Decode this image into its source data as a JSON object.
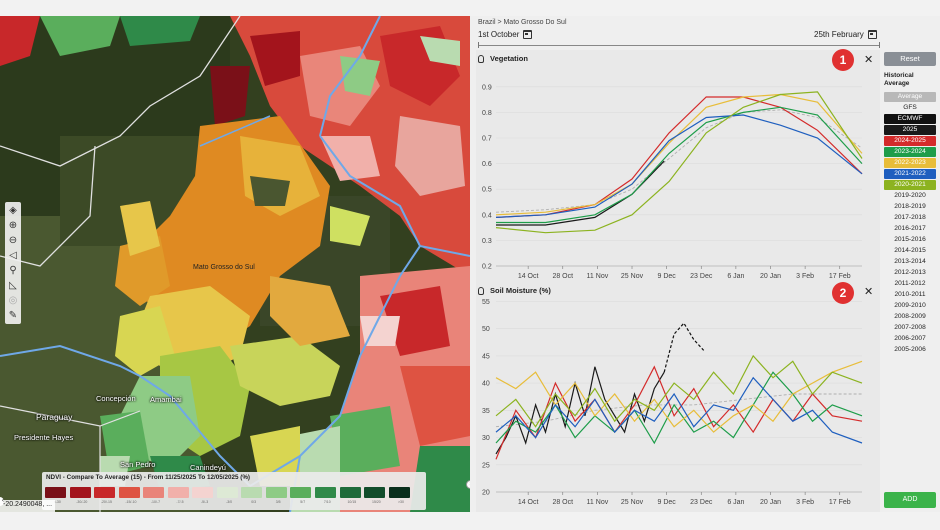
{
  "map": {
    "labels": {
      "state": "Mato Grosso do Sul",
      "concepcion": "Concepción",
      "amambai": "Amambai",
      "paraguay": "Paraguay",
      "presidente_hayes": "Presidente Hayes",
      "san_pedro": "San Pedro",
      "canindeyu": "Canindeyú"
    },
    "toolbar": [
      {
        "name": "layers-icon",
        "glyph": "◈"
      },
      {
        "name": "zoom-in-icon",
        "glyph": "⊕"
      },
      {
        "name": "zoom-out-icon",
        "glyph": "⊖"
      },
      {
        "name": "navigate-icon",
        "glyph": "◁"
      },
      {
        "name": "search-icon",
        "glyph": "⚲"
      },
      {
        "name": "measure-icon",
        "glyph": "◺"
      },
      {
        "name": "target-icon",
        "glyph": "◎"
      },
      {
        "name": "draw-icon",
        "glyph": "✎"
      }
    ],
    "legend": {
      "title": "NDVI - Compare To Average (15) - From 11/25/2025 To 12/05/2025 (%)",
      "colors": [
        "#7a1018",
        "#a3141c",
        "#c8282a",
        "#de5342",
        "#e98479",
        "#f1b0aa",
        "#f4d3d0",
        "#dde9d5",
        "#b9dbb0",
        "#8ecb85",
        "#5aae5c",
        "#2f8a49",
        "#1f6b3a",
        "#124d2b",
        "#0a2e1c"
      ],
      "ranges": [
        "<-30",
        "-30/-20",
        "-20/-15",
        "-15/-10",
        "-10/-7",
        "-7/-5",
        "-5/-3",
        "-3/0",
        "0/3",
        "3/5",
        "5/7",
        "7/10",
        "10/15",
        "15/20",
        ">30"
      ]
    },
    "coords": "-20.2490048, ..."
  },
  "panel": {
    "breadcrumb": "Brazil > Mato Grosso Do Sul",
    "date_start": "1st October",
    "date_end": "25th February",
    "reset_label": "Reset",
    "historical_label": "Historical Average",
    "add_label": "ADD",
    "years": [
      {
        "label": "Average",
        "bg": "#b8b8b8",
        "fg": "#ffffff"
      },
      {
        "label": "GFS",
        "bg": "",
        "fg": "#222222"
      },
      {
        "label": "ECMWF",
        "bg": "#111111",
        "fg": "#ffffff"
      },
      {
        "label": "2025",
        "bg": "#1a1a1a",
        "fg": "#ffffff"
      },
      {
        "label": "2024-2025",
        "bg": "#d42b2b",
        "fg": "#ffffff"
      },
      {
        "label": "2023-2024",
        "bg": "#1e9d4a",
        "fg": "#ffffff"
      },
      {
        "label": "2022-2023",
        "bg": "#e8bd3a",
        "fg": "#ffffff"
      },
      {
        "label": "2021-2022",
        "bg": "#1f5fbf",
        "fg": "#ffffff"
      },
      {
        "label": "2020-2021",
        "bg": "#8cb320",
        "fg": "#ffffff"
      },
      {
        "label": "2019-2020",
        "bg": "",
        "fg": "#222222"
      },
      {
        "label": "2018-2019",
        "bg": "",
        "fg": "#222222"
      },
      {
        "label": "2017-2018",
        "bg": "",
        "fg": "#222222"
      },
      {
        "label": "2016-2017",
        "bg": "",
        "fg": "#222222"
      },
      {
        "label": "2015-2016",
        "bg": "",
        "fg": "#222222"
      },
      {
        "label": "2014-2015",
        "bg": "",
        "fg": "#222222"
      },
      {
        "label": "2013-2014",
        "bg": "",
        "fg": "#222222"
      },
      {
        "label": "2012-2013",
        "bg": "",
        "fg": "#222222"
      },
      {
        "label": "2011-2012",
        "bg": "",
        "fg": "#222222"
      },
      {
        "label": "2010-2011",
        "bg": "",
        "fg": "#222222"
      },
      {
        "label": "2009-2010",
        "bg": "",
        "fg": "#222222"
      },
      {
        "label": "2008-2009",
        "bg": "",
        "fg": "#222222"
      },
      {
        "label": "2007-2008",
        "bg": "",
        "fg": "#222222"
      },
      {
        "label": "2006-2007",
        "bg": "",
        "fg": "#222222"
      },
      {
        "label": "2005-2006",
        "bg": "",
        "fg": "#222222"
      }
    ]
  },
  "chart_data": [
    {
      "type": "line",
      "title": "Vegetation",
      "badge": "1",
      "x_ticks": [
        "14 Oct",
        "28 Oct",
        "11 Nov",
        "25 Nov",
        "9 Dec",
        "23 Dec",
        "6 Jan",
        "20 Jan",
        "3 Feb",
        "17 Feb"
      ],
      "x_tick_days": [
        13,
        27,
        41,
        55,
        69,
        83,
        97,
        111,
        125,
        139
      ],
      "xlim": [
        0,
        148
      ],
      "ylim": [
        0.2,
        0.95
      ],
      "y_ticks": [
        0.2,
        0.3,
        0.4,
        0.5,
        0.6,
        0.7,
        0.8,
        0.9
      ],
      "series": [
        {
          "name": "Average",
          "color": "#b0b0b0",
          "dashed": true,
          "x": [
            0,
            20,
            40,
            55,
            70,
            85,
            100,
            115,
            130,
            148
          ],
          "y": [
            0.41,
            0.42,
            0.44,
            0.5,
            0.62,
            0.74,
            0.8,
            0.81,
            0.78,
            0.66
          ]
        },
        {
          "name": "2025",
          "color": "#1a1a1a",
          "dashed": false,
          "x": [
            0,
            20,
            40,
            55,
            62,
            68
          ],
          "y": [
            0.36,
            0.36,
            0.39,
            0.48,
            0.55,
            0.61
          ]
        },
        {
          "name": "2024-2025",
          "color": "#d42b2b",
          "dashed": false,
          "x": [
            0,
            20,
            40,
            55,
            70,
            85,
            100,
            115,
            130,
            148
          ],
          "y": [
            0.39,
            0.4,
            0.44,
            0.54,
            0.72,
            0.86,
            0.86,
            0.82,
            0.73,
            0.56
          ]
        },
        {
          "name": "2023-2024",
          "color": "#1e9d4a",
          "dashed": false,
          "x": [
            0,
            20,
            40,
            55,
            70,
            85,
            100,
            115,
            130,
            148
          ],
          "y": [
            0.37,
            0.37,
            0.4,
            0.48,
            0.64,
            0.76,
            0.8,
            0.82,
            0.79,
            0.6
          ]
        },
        {
          "name": "2022-2023",
          "color": "#e8bd3a",
          "dashed": false,
          "x": [
            0,
            20,
            40,
            55,
            70,
            85,
            100,
            115,
            130,
            148
          ],
          "y": [
            0.4,
            0.41,
            0.44,
            0.52,
            0.68,
            0.82,
            0.86,
            0.87,
            0.84,
            0.64
          ]
        },
        {
          "name": "2021-2022",
          "color": "#1f5fbf",
          "dashed": false,
          "x": [
            0,
            20,
            40,
            55,
            70,
            85,
            100,
            115,
            130,
            148
          ],
          "y": [
            0.39,
            0.4,
            0.43,
            0.52,
            0.69,
            0.78,
            0.79,
            0.75,
            0.7,
            0.56
          ]
        },
        {
          "name": "2020-2021",
          "color": "#8cb320",
          "dashed": false,
          "x": [
            0,
            20,
            40,
            55,
            70,
            85,
            100,
            115,
            130,
            148
          ],
          "y": [
            0.35,
            0.33,
            0.34,
            0.4,
            0.53,
            0.72,
            0.82,
            0.87,
            0.88,
            0.62
          ]
        }
      ]
    },
    {
      "type": "line",
      "title": "Soil Moisture (%)",
      "badge": "2",
      "x_ticks": [
        "14 Oct",
        "28 Oct",
        "11 Nov",
        "25 Nov",
        "9 Dec",
        "23 Dec",
        "6 Jan",
        "20 Jan",
        "3 Feb",
        "17 Feb"
      ],
      "x_tick_days": [
        13,
        27,
        41,
        55,
        69,
        83,
        97,
        111,
        125,
        139
      ],
      "xlim": [
        0,
        148
      ],
      "ylim": [
        20,
        56
      ],
      "y_ticks": [
        20,
        25,
        30,
        35,
        40,
        45,
        50,
        55
      ],
      "series": [
        {
          "name": "Average",
          "color": "#b0b0b0",
          "dashed": true,
          "x": [
            0,
            20,
            40,
            60,
            80,
            100,
            120,
            148
          ],
          "y": [
            32,
            33,
            35,
            36,
            36,
            37,
            38,
            38
          ]
        },
        {
          "name": "ECMWF",
          "color": "#111111",
          "dashed": true,
          "x": [
            68,
            72,
            76,
            80,
            84
          ],
          "y": [
            42,
            49,
            51,
            48,
            46
          ]
        },
        {
          "name": "2025",
          "color": "#1a1a1a",
          "dashed": false,
          "x": [
            0,
            4,
            8,
            12,
            16,
            20,
            24,
            28,
            32,
            36,
            40,
            44,
            48,
            52,
            56,
            60,
            64,
            68
          ],
          "y": [
            27,
            30,
            34,
            29,
            36,
            31,
            38,
            32,
            40,
            34,
            43,
            37,
            34,
            31,
            38,
            33,
            39,
            42
          ]
        },
        {
          "name": "2024-2025",
          "color": "#d42b2b",
          "dashed": false,
          "x": [
            0,
            8,
            16,
            24,
            32,
            40,
            48,
            56,
            64,
            72,
            80,
            88,
            96,
            104,
            112,
            120,
            128,
            136,
            148
          ],
          "y": [
            26,
            35,
            30,
            40,
            33,
            37,
            31,
            36,
            43,
            34,
            39,
            32,
            36,
            31,
            37,
            33,
            38,
            34,
            33
          ]
        },
        {
          "name": "2023-2024",
          "color": "#1e9d4a",
          "dashed": false,
          "x": [
            0,
            8,
            16,
            24,
            32,
            40,
            48,
            56,
            64,
            72,
            80,
            88,
            96,
            104,
            112,
            120,
            128,
            136,
            148
          ],
          "y": [
            29,
            33,
            31,
            36,
            30,
            34,
            31,
            35,
            29,
            36,
            31,
            33,
            30,
            36,
            42,
            38,
            33,
            36,
            34
          ]
        },
        {
          "name": "2022-2023",
          "color": "#e8bd3a",
          "dashed": false,
          "x": [
            0,
            8,
            16,
            24,
            32,
            40,
            48,
            56,
            64,
            72,
            80,
            88,
            96,
            104,
            112,
            120,
            128,
            136,
            148
          ],
          "y": [
            41,
            39,
            42,
            36,
            40,
            34,
            38,
            33,
            37,
            32,
            35,
            31,
            34,
            36,
            33,
            38,
            40,
            42,
            44
          ]
        },
        {
          "name": "2021-2022",
          "color": "#1f5fbf",
          "dashed": false,
          "x": [
            0,
            8,
            16,
            24,
            32,
            40,
            48,
            56,
            64,
            72,
            80,
            88,
            96,
            104,
            112,
            120,
            128,
            136,
            148
          ],
          "y": [
            31,
            34,
            30,
            36,
            32,
            37,
            31,
            35,
            33,
            38,
            32,
            36,
            35,
            41,
            37,
            33,
            35,
            31,
            29
          ]
        },
        {
          "name": "2020-2021",
          "color": "#8cb320",
          "dashed": false,
          "x": [
            0,
            8,
            16,
            24,
            32,
            40,
            48,
            56,
            64,
            72,
            80,
            88,
            96,
            104,
            112,
            120,
            128,
            136,
            148
          ],
          "y": [
            34,
            37,
            32,
            38,
            34,
            39,
            33,
            37,
            35,
            40,
            37,
            42,
            38,
            45,
            41,
            44,
            38,
            42,
            40
          ]
        }
      ]
    }
  ]
}
